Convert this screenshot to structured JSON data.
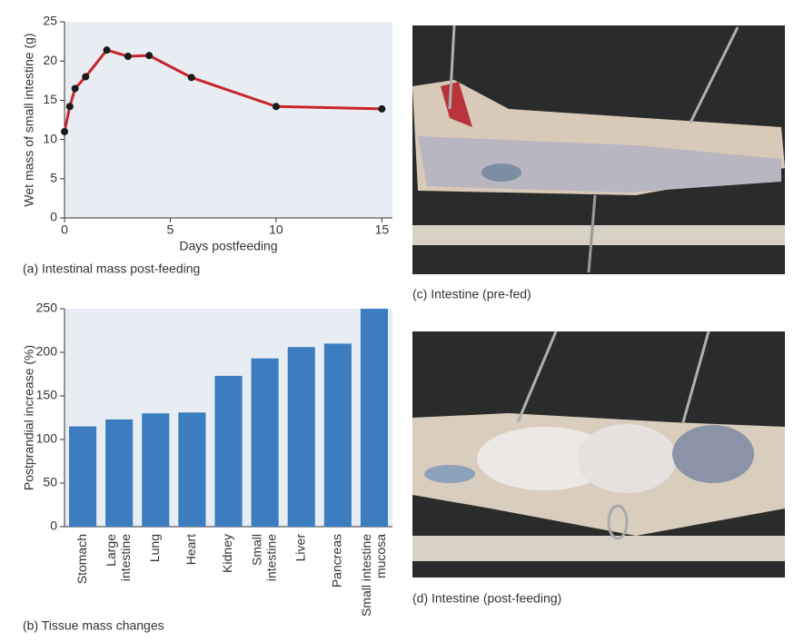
{
  "chart_data": [
    {
      "type": "line",
      "title": "(a) Intestinal mass post-feeding",
      "x_label": "Days postfeeding",
      "y_label": "Wet mass of small intestine (g)",
      "x": [
        0,
        0.25,
        0.5,
        1,
        2,
        3,
        4,
        6,
        10,
        15
      ],
      "values": [
        11,
        14.2,
        16.5,
        18,
        21.4,
        20.6,
        20.7,
        17.9,
        14.2,
        13.9
      ],
      "color": "#c8242a",
      "marker_color": "#1a1a1a",
      "xlim": [
        0,
        15.5
      ],
      "xticks": [
        0,
        5,
        10,
        15
      ],
      "ylim": [
        0,
        25
      ],
      "yticks": [
        0,
        5,
        10,
        15,
        20,
        25
      ]
    },
    {
      "type": "bar",
      "title": "(b) Tissue mass changes",
      "y_label": "Postprandial increase (%)",
      "categories": [
        "Stomach",
        "Large\nintestine",
        "Lung",
        "Heart",
        "Kidney",
        "Small\nintestine",
        "Liver",
        "Pancreas",
        "Small intestine\nmucosa"
      ],
      "values": [
        115,
        123,
        130,
        131,
        173,
        193,
        206,
        210,
        250
      ],
      "color": "#3b7dbf",
      "ylim": [
        0,
        250
      ],
      "yticks": [
        0,
        50,
        100,
        150,
        200,
        250
      ]
    }
  ],
  "photos": [
    {
      "caption": "(c) Intestine (pre-fed)"
    },
    {
      "caption": "(d) Intestine (post-feeding)"
    }
  ]
}
